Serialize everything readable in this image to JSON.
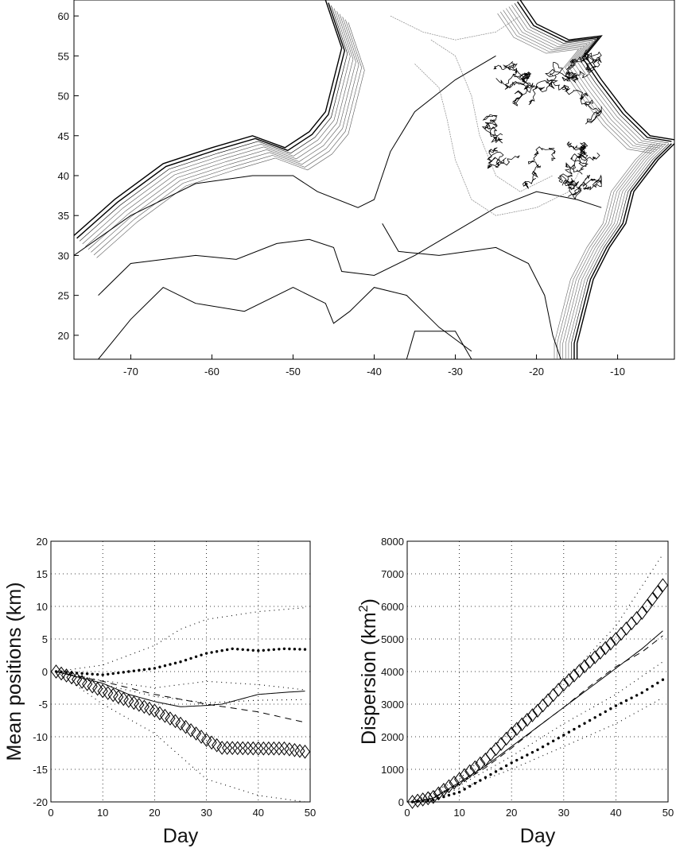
{
  "chart_data": [
    {
      "type": "contour",
      "xlim": [
        -77,
        -3
      ],
      "ylim": [
        17,
        62
      ],
      "xticks": [
        -70,
        -60,
        -50,
        -40,
        -30,
        -20,
        -10
      ],
      "yticks": [
        20,
        25,
        30,
        35,
        40,
        45,
        50,
        55,
        60
      ],
      "grid": false
    },
    {
      "type": "line",
      "xlabel": "Day",
      "ylabel": "Mean positions (km)",
      "xlim": [
        0,
        50
      ],
      "ylim": [
        -20,
        20
      ],
      "xticks": [
        0,
        10,
        20,
        30,
        40,
        50
      ],
      "yticks": [
        -20,
        -15,
        -10,
        -5,
        0,
        5,
        10,
        15,
        20
      ],
      "grid": true,
      "series": [
        {
          "style": "diamond",
          "x": [
            1,
            5,
            10,
            15,
            20,
            25,
            30,
            33,
            40,
            45,
            49
          ],
          "y": [
            0,
            -1.2,
            -3,
            -4.5,
            -6,
            -8,
            -10.5,
            -11.7,
            -11.8,
            -11.8,
            -12.3
          ]
        },
        {
          "style": "solid",
          "x": [
            1,
            5,
            10,
            15,
            20,
            25,
            30,
            33,
            40,
            45,
            49
          ],
          "y": [
            0,
            -0.8,
            -1.8,
            -3.5,
            -4.6,
            -5.4,
            -5.2,
            -5,
            -3.5,
            -3.2,
            -3
          ]
        },
        {
          "style": "dashed",
          "x": [
            1,
            10,
            20,
            30,
            40,
            49
          ],
          "y": [
            0,
            -1.5,
            -3.5,
            -5,
            -6.2,
            -7.8
          ]
        },
        {
          "style": "heavy-dotted",
          "x": [
            1,
            10,
            20,
            25,
            30,
            35,
            40,
            45,
            49
          ],
          "y": [
            0,
            -0.5,
            0.5,
            1.5,
            2.8,
            3.5,
            3.2,
            3.5,
            3.4
          ]
        },
        {
          "style": "dotted",
          "x": [
            1,
            10,
            20,
            25,
            30,
            40,
            49
          ],
          "y": [
            0,
            1,
            4,
            6.5,
            8,
            9.2,
            9.8
          ]
        },
        {
          "style": "dotted",
          "x": [
            1,
            10,
            20,
            25,
            30,
            40,
            49
          ],
          "y": [
            0,
            -1.4,
            -2.5,
            -2,
            -1.5,
            -2,
            -2.8
          ]
        },
        {
          "style": "dotted",
          "x": [
            1,
            10,
            20,
            30,
            40,
            49
          ],
          "y": [
            0,
            -2,
            -3.8,
            -4.8,
            -4.4,
            -4.3
          ]
        },
        {
          "style": "dotted",
          "x": [
            1,
            10,
            20,
            25,
            30,
            40,
            49
          ],
          "y": [
            0,
            -5,
            -9.5,
            -13,
            -16.5,
            -19,
            -20
          ]
        }
      ]
    },
    {
      "type": "line",
      "xlabel": "Day",
      "ylabel": "Dispersion (km",
      "ylabel_sup": "2",
      "ylabel_end": ")",
      "xlim": [
        0,
        50
      ],
      "ylim": [
        0,
        8000
      ],
      "xticks": [
        0,
        10,
        20,
        30,
        40,
        50
      ],
      "yticks": [
        0,
        1000,
        2000,
        3000,
        4000,
        5000,
        6000,
        7000,
        8000
      ],
      "grid": true,
      "series": [
        {
          "style": "diamond",
          "x": [
            1,
            5,
            10,
            15,
            20,
            25,
            30,
            35,
            40,
            45,
            49
          ],
          "y": [
            0,
            150,
            700,
            1300,
            2100,
            2800,
            3600,
            4300,
            5000,
            5800,
            6650
          ]
        },
        {
          "style": "solid",
          "x": [
            1,
            5,
            10,
            15,
            20,
            25,
            30,
            35,
            40,
            45,
            49
          ],
          "y": [
            0,
            120,
            600,
            1100,
            1700,
            2300,
            2900,
            3500,
            4100,
            4700,
            5250
          ]
        },
        {
          "style": "dashed",
          "x": [
            1,
            5,
            10,
            15,
            20,
            25,
            30,
            35,
            40,
            45,
            49
          ],
          "y": [
            0,
            110,
            550,
            1050,
            1650,
            2300,
            2900,
            3550,
            4150,
            4600,
            5100
          ]
        },
        {
          "style": "heavy-dotted",
          "x": [
            1,
            5,
            10,
            15,
            20,
            25,
            30,
            35,
            40,
            45,
            49
          ],
          "y": [
            0,
            60,
            300,
            750,
            1200,
            1600,
            2050,
            2500,
            2950,
            3350,
            3750
          ]
        },
        {
          "style": "dotted",
          "x": [
            1,
            10,
            20,
            30,
            40,
            49
          ],
          "y": [
            0,
            700,
            2200,
            3700,
            5400,
            7600
          ]
        },
        {
          "style": "dotted",
          "x": [
            1,
            10,
            20,
            30,
            40,
            49
          ],
          "y": [
            0,
            500,
            1400,
            2400,
            3300,
            4300
          ]
        },
        {
          "style": "dotted",
          "x": [
            1,
            10,
            20,
            30,
            40,
            49
          ],
          "y": [
            0,
            400,
            1000,
            1700,
            2400,
            3200
          ]
        }
      ]
    }
  ]
}
